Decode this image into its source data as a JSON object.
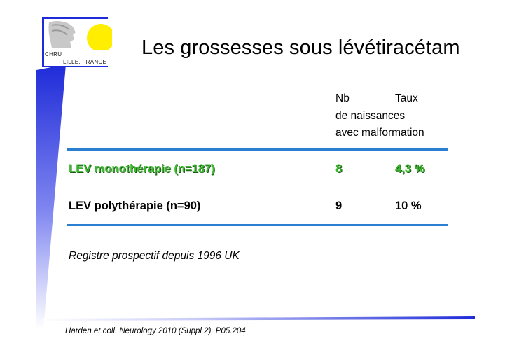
{
  "slide": {
    "title": "Les grossesses sous lévétiracétam",
    "logo": {
      "line1": "CHRU",
      "line2": "LILLE, FRANCE"
    },
    "table": {
      "header": {
        "nb": "Nb",
        "taux": "Taux",
        "line2": "de naissances",
        "line3": "avec malformation"
      },
      "rows": [
        {
          "label": "LEV monothérapie (n=187)",
          "nb": "8",
          "taux": "4,3 %",
          "highlight": true
        },
        {
          "label": "LEV polythérapie (n=90)",
          "nb": "9",
          "taux": "10 %",
          "highlight": false
        }
      ]
    },
    "note": "Registre prospectif depuis 1996 UK",
    "reference": "Harden et coll. Neurology 2010 (Suppl 2), P05.204"
  },
  "colors": {
    "accent_blue": "#2b7fd0",
    "highlight_green": "#3bb82e",
    "sun_yellow": "#ffee00"
  }
}
